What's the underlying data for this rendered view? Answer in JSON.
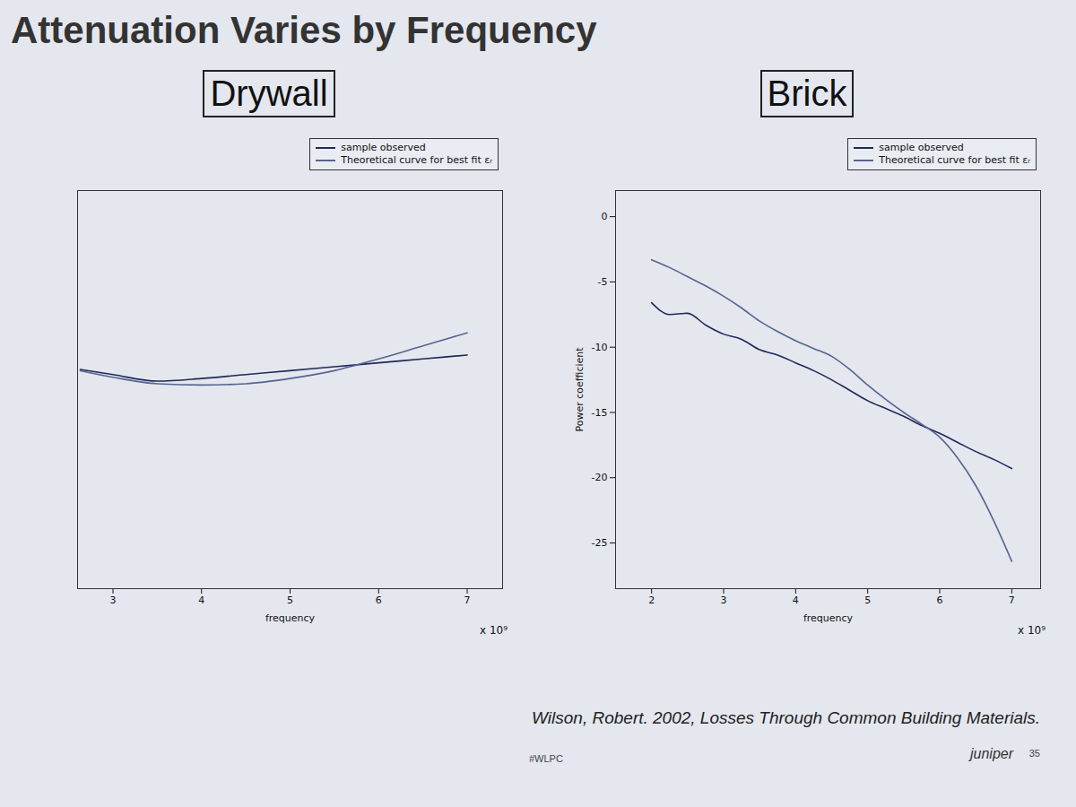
{
  "slide": {
    "title": "Attenuation Varies by Frequency",
    "source": "Wilson, Robert. 2002, Losses Through Common Building Materials.",
    "hashtag": "#WLPC",
    "logo": "juniper",
    "page": "35"
  },
  "chart_data": [
    {
      "type": "line",
      "title": "Drywall",
      "x_label": "frequency",
      "annotations": [
        "x 10⁹"
      ],
      "x": [
        2.63,
        3,
        3.5,
        4,
        4.5,
        5,
        5.5,
        6,
        6.5,
        7
      ],
      "series": [
        {
          "name": "sample observed",
          "color": "#1f2a5a",
          "line_style": "solid",
          "values": [
            -11.7,
            -12.1,
            -12.6,
            -12.4,
            -12.1,
            -11.8,
            -11.5,
            -11.2,
            -10.9,
            -10.6
          ]
        },
        {
          "name": "Theoretical curve for best fit εᵣ",
          "color": "#56648f",
          "line_style": "solid",
          "values": [
            -11.8,
            -12.3,
            -12.8,
            -12.9,
            -12.8,
            -12.4,
            -11.8,
            -10.9,
            -9.9,
            -8.9
          ]
        }
      ],
      "xlim": [
        2.6,
        7.4
      ],
      "xticks": [
        3,
        4,
        5,
        6,
        7
      ],
      "ylim": [
        -28.5,
        2
      ],
      "tick_labels": "x",
      "grid": false,
      "legend": "top-right"
    },
    {
      "type": "line",
      "title": "Brick",
      "x_label": "frequency",
      "y_label": "Power coefficient",
      "annotations": [
        "x 10⁹"
      ],
      "x": [
        2,
        2.25,
        2.5,
        2.75,
        3,
        3.25,
        3.5,
        3.75,
        4,
        4.25,
        4.5,
        4.75,
        5,
        5.25,
        5.5,
        5.75,
        6,
        6.25,
        6.5,
        6.75,
        7
      ],
      "series": [
        {
          "name": "sample observed",
          "color": "#1f2a5a",
          "line_style": "solid",
          "values": [
            -6.6,
            -7.5,
            -7.4,
            -8.3,
            -9.0,
            -9.4,
            -10.2,
            -10.6,
            -11.2,
            -11.8,
            -12.5,
            -13.3,
            -14.1,
            -14.7,
            -15.3,
            -16.0,
            -16.6,
            -17.3,
            -18.0,
            -18.6,
            -19.3
          ]
        },
        {
          "name": "Theoretical curve for best fit εᵣ",
          "color": "#56648f",
          "line_style": "solid",
          "values": [
            -3.3,
            -3.9,
            -4.6,
            -5.3,
            -6.1,
            -7.0,
            -8.0,
            -8.8,
            -9.5,
            -10.1,
            -10.7,
            -11.7,
            -12.9,
            -14.0,
            -15.0,
            -15.9,
            -16.9,
            -18.5,
            -20.6,
            -23.3,
            -26.4
          ]
        }
      ],
      "xlim": [
        1.5,
        7.4
      ],
      "xticks": [
        2,
        3,
        4,
        5,
        6,
        7
      ],
      "ylim": [
        -28.5,
        2
      ],
      "yticks": [
        0,
        -5,
        -10,
        -15,
        -20,
        -25
      ],
      "grid": false,
      "legend": "top-right"
    }
  ]
}
